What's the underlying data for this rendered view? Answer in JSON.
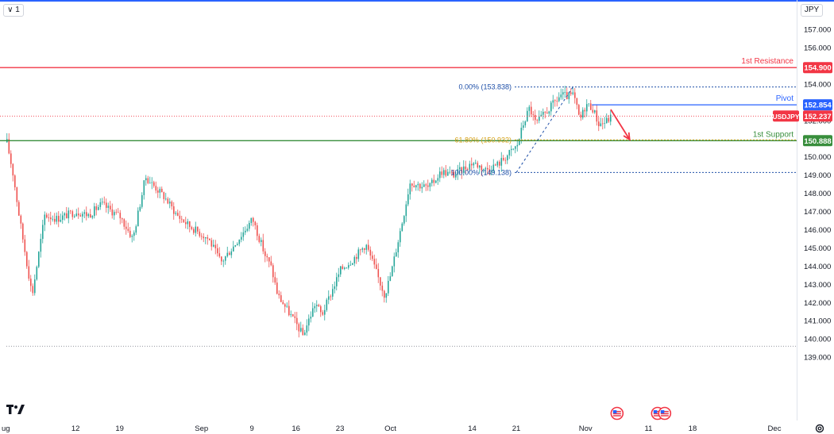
{
  "header": {
    "collapse_label": "∨ 1",
    "currency_label": "JPY"
  },
  "icons": {
    "logo": "tradingview-logo-icon",
    "settings": "gear-icon",
    "events": "us-flag-event-icon"
  },
  "colors": {
    "up": "#26a69a",
    "down": "#ef5350",
    "resistance": "#f23645",
    "pivot": "#2962ff",
    "support": "#388e3c",
    "fib": "#1e4fa8",
    "fib_mid": "#d4a017",
    "arrow": "#f23645",
    "current": "#f23645"
  },
  "chart_data": {
    "type": "candlestick",
    "symbol": "USDJPY",
    "current_price": 152.237,
    "current_label": "152.237",
    "ylim": [
      138.75,
      157.75
    ],
    "y_ticks": [
      139.0,
      140.0,
      141.0,
      142.0,
      143.0,
      144.0,
      145.0,
      146.0,
      147.0,
      148.0,
      149.0,
      150.0,
      151.0,
      152.0,
      153.0,
      154.0,
      155.0,
      156.0,
      157.0
    ],
    "y_tick_labels": [
      "139.000",
      "140.000",
      "141.000",
      "142.000",
      "143.000",
      "144.000",
      "145.000",
      "146.000",
      "147.000",
      "148.000",
      "149.000",
      "150.000",
      "151.000",
      "152.000",
      "153.000",
      "154.000",
      "155.000",
      "156.000",
      "157.000"
    ],
    "x_range": [
      "2024-08-01",
      "2024-12-05"
    ],
    "x_ticks": [
      {
        "date": "2024-08-01",
        "label": "ug"
      },
      {
        "date": "2024-08-12",
        "label": "12"
      },
      {
        "date": "2024-08-19",
        "label": "19"
      },
      {
        "date": "2024-09-01",
        "label": "Sep"
      },
      {
        "date": "2024-09-09",
        "label": "9"
      },
      {
        "date": "2024-09-16",
        "label": "16"
      },
      {
        "date": "2024-09-23",
        "label": "23"
      },
      {
        "date": "2024-10-01",
        "label": "Oct"
      },
      {
        "date": "2024-10-14",
        "label": "14"
      },
      {
        "date": "2024-10-21",
        "label": "21"
      },
      {
        "date": "2024-11-01",
        "label": "Nov"
      },
      {
        "date": "2024-11-11",
        "label": "11"
      },
      {
        "date": "2024-11-18",
        "label": "18"
      },
      {
        "date": "2024-12-01",
        "label": "Dec"
      }
    ],
    "levels": [
      {
        "name": "1st Resistance",
        "price": 154.9,
        "label": "1st Resistance",
        "price_label": "154.900",
        "from": "2024-08-01",
        "style": "solid",
        "color_key": "resistance"
      },
      {
        "name": "Pivot",
        "price": 152.854,
        "label": "Pivot",
        "price_label": "152.854",
        "from": "2024-11-01",
        "style": "solid",
        "color_key": "pivot"
      },
      {
        "name": "1st Support",
        "price": 150.888,
        "label": "1st Support",
        "price_label": "150.888",
        "from": "2024-08-01",
        "style": "solid",
        "color_key": "support"
      }
    ],
    "fibonacci": {
      "from": {
        "date": "2024-10-21",
        "price": 149.138
      },
      "to": {
        "date": "2024-10-30",
        "price": 153.838
      },
      "levels": [
        {
          "ratio": 0.0,
          "price": 153.838,
          "label": "0.00% (153.838)",
          "color_key": "fib"
        },
        {
          "ratio": 0.618,
          "price": 150.932,
          "label": "61.80% (150.932)",
          "color_key": "fib_mid"
        },
        {
          "ratio": 1.0,
          "price": 149.138,
          "label": "100.00% (149.138)",
          "color_key": "fib"
        }
      ]
    },
    "bottom_reference": {
      "price": 139.6,
      "from": "2024-08-01"
    },
    "forecast_arrow": {
      "from": {
        "date": "2024-11-05",
        "price": 152.6
      },
      "to": {
        "date": "2024-11-08",
        "price": 150.95
      }
    },
    "event_markers": [
      {
        "date": "2024-11-06",
        "count": 1
      },
      {
        "date": "2024-11-13",
        "count": 2
      }
    ],
    "anchor_points": [
      {
        "d": "2024-08-01",
        "p": 150.8
      },
      {
        "d": "2024-08-02",
        "p": 149.0
      },
      {
        "d": "2024-08-03",
        "p": 146.6
      },
      {
        "d": "2024-08-05",
        "p": 142.4
      },
      {
        "d": "2024-08-06",
        "p": 144.6
      },
      {
        "d": "2024-08-07",
        "p": 146.8
      },
      {
        "d": "2024-08-09",
        "p": 146.6
      },
      {
        "d": "2024-08-12",
        "p": 147.0
      },
      {
        "d": "2024-08-14",
        "p": 146.8
      },
      {
        "d": "2024-08-16",
        "p": 147.4
      },
      {
        "d": "2024-08-19",
        "p": 146.7
      },
      {
        "d": "2024-08-21",
        "p": 145.5
      },
      {
        "d": "2024-08-23",
        "p": 148.9
      },
      {
        "d": "2024-08-26",
        "p": 147.8
      },
      {
        "d": "2024-08-28",
        "p": 146.8
      },
      {
        "d": "2024-08-30",
        "p": 146.2
      },
      {
        "d": "2024-09-02",
        "p": 145.5
      },
      {
        "d": "2024-09-04",
        "p": 144.2
      },
      {
        "d": "2024-09-06",
        "p": 145.1
      },
      {
        "d": "2024-09-09",
        "p": 146.6
      },
      {
        "d": "2024-09-11",
        "p": 144.6
      },
      {
        "d": "2024-09-12",
        "p": 143.9
      },
      {
        "d": "2024-09-13",
        "p": 142.4
      },
      {
        "d": "2024-09-16",
        "p": 140.8
      },
      {
        "d": "2024-09-17",
        "p": 140.2
      },
      {
        "d": "2024-09-19",
        "p": 142.0
      },
      {
        "d": "2024-09-20",
        "p": 141.3
      },
      {
        "d": "2024-09-23",
        "p": 143.8
      },
      {
        "d": "2024-09-25",
        "p": 144.4
      },
      {
        "d": "2024-09-27",
        "p": 145.2
      },
      {
        "d": "2024-09-30",
        "p": 142.4
      },
      {
        "d": "2024-10-01",
        "p": 143.6
      },
      {
        "d": "2024-10-03",
        "p": 146.8
      },
      {
        "d": "2024-10-04",
        "p": 148.6
      },
      {
        "d": "2024-10-07",
        "p": 148.3
      },
      {
        "d": "2024-10-09",
        "p": 149.2
      },
      {
        "d": "2024-10-11",
        "p": 149.0
      },
      {
        "d": "2024-10-14",
        "p": 149.7
      },
      {
        "d": "2024-10-16",
        "p": 149.3
      },
      {
        "d": "2024-10-18",
        "p": 149.6
      },
      {
        "d": "2024-10-21",
        "p": 150.6
      },
      {
        "d": "2024-10-22",
        "p": 151.8
      },
      {
        "d": "2024-10-23",
        "p": 152.7
      },
      {
        "d": "2024-10-24",
        "p": 151.8
      },
      {
        "d": "2024-10-25",
        "p": 152.2
      },
      {
        "d": "2024-10-28",
        "p": 153.4
      },
      {
        "d": "2024-10-29",
        "p": 153.3
      },
      {
        "d": "2024-10-30",
        "p": 153.4
      },
      {
        "d": "2024-10-31",
        "p": 152.0
      },
      {
        "d": "2024-11-01",
        "p": 152.9
      },
      {
        "d": "2024-11-02",
        "p": 152.7
      },
      {
        "d": "2024-11-03",
        "p": 151.8
      },
      {
        "d": "2024-11-04",
        "p": 151.9
      },
      {
        "d": "2024-11-05",
        "p": 152.2
      }
    ]
  }
}
